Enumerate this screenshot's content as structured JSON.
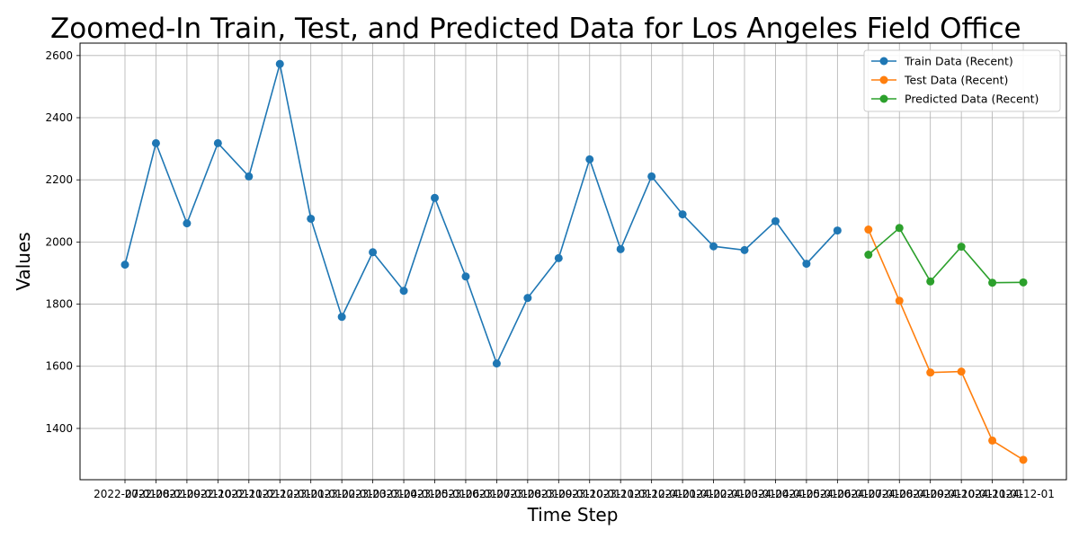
{
  "chart_data": {
    "type": "line",
    "title": "Zoomed-In Train, Test, and Predicted Data for Los Angeles Field Office",
    "xlabel": "Time Step",
    "ylabel": "Values",
    "ylim": [
      1235,
      2640
    ],
    "yticks": [
      1400,
      1600,
      1800,
      2000,
      2200,
      2400,
      2600
    ],
    "grid": true,
    "legend_position": "top-right",
    "categories": [
      "2022-07-01",
      "2022-08-01",
      "2022-09-01",
      "2022-10-01",
      "2022-11-01",
      "2022-12-01",
      "2023-01-01",
      "2023-02-01",
      "2023-03-01",
      "2023-04-01",
      "2023-05-01",
      "2023-06-01",
      "2023-07-01",
      "2023-08-01",
      "2023-09-01",
      "2023-10-01",
      "2023-11-01",
      "2023-12-01",
      "2024-01-01",
      "2024-02-01",
      "2024-03-01",
      "2024-04-01",
      "2024-05-01",
      "2024-06-01",
      "2024-07-01",
      "2024-08-01",
      "2024-09-01",
      "2024-10-01",
      "2024-11-01",
      "2024-12-01"
    ],
    "series": [
      {
        "name": "Train Data (Recent)",
        "color": "#1f77b4",
        "x": [
          "2022-07-01",
          "2022-08-01",
          "2022-09-01",
          "2022-10-01",
          "2022-11-01",
          "2022-12-01",
          "2023-01-01",
          "2023-02-01",
          "2023-03-01",
          "2023-04-01",
          "2023-05-01",
          "2023-06-01",
          "2023-07-01",
          "2023-08-01",
          "2023-09-01",
          "2023-10-01",
          "2023-11-01",
          "2023-12-01",
          "2024-01-01",
          "2024-02-01",
          "2024-03-01",
          "2024-04-01",
          "2024-05-01",
          "2024-06-01"
        ],
        "values": [
          1927,
          2318,
          2060,
          2318,
          2211,
          2573,
          2075,
          1759,
          1967,
          1843,
          2142,
          1889,
          1609,
          1820,
          1948,
          2266,
          1977,
          2211,
          2089,
          1986,
          1974,
          2067,
          1930,
          2037
        ]
      },
      {
        "name": "Test Data (Recent)",
        "color": "#ff7f0e",
        "x": [
          "2024-07-01",
          "2024-08-01",
          "2024-09-01",
          "2024-10-01",
          "2024-11-01",
          "2024-12-01"
        ],
        "values": [
          2040,
          1811,
          1580,
          1583,
          1361,
          1299
        ]
      },
      {
        "name": "Predicted Data (Recent)",
        "color": "#2ca02c",
        "x": [
          "2024-07-01",
          "2024-08-01",
          "2024-09-01",
          "2024-10-01",
          "2024-11-01",
          "2024-12-01"
        ],
        "values": [
          1959,
          2045,
          1873,
          1985,
          1869,
          1870
        ]
      }
    ]
  }
}
